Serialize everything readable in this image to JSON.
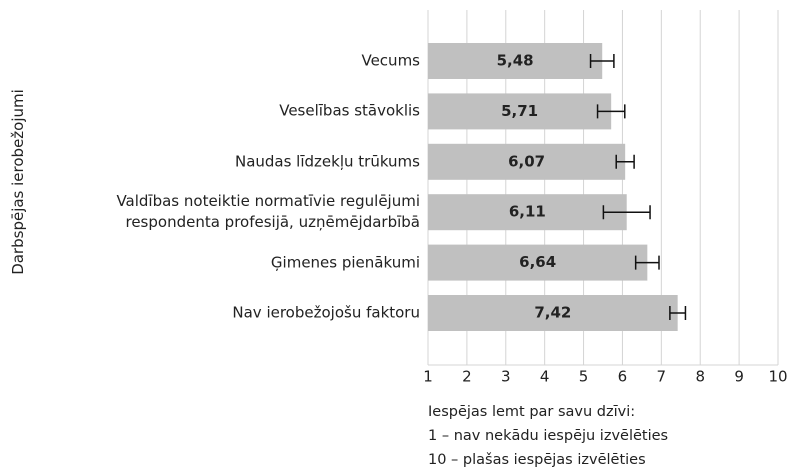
{
  "chart_data": {
    "type": "bar",
    "orientation": "horizontal",
    "ylabel": "Darbspējas ierobežojumi",
    "xlabel": "Iespējas lemt par savu dzīvi:\n1 – nav nekādu iespēju izvēlēties\n10 – plašas iespējas izvēlēties",
    "categories": [
      "Vecums",
      "Veselības stāvoklis",
      "Naudas līdzekļu trūkums",
      "Valdības noteiktie normatīvie regulējumi\nrespondenta profesijā, uzņēmējdarbībā",
      "Ģimenes pienākumi",
      "Nav ierobežojošu faktoru"
    ],
    "values": [
      5.48,
      5.71,
      6.07,
      6.11,
      6.64,
      7.42
    ],
    "value_labels": [
      "5,48",
      "5,71",
      "6,07",
      "6,11",
      "6,64",
      "7,42"
    ],
    "errors": [
      0.3,
      0.35,
      0.23,
      0.6,
      0.3,
      0.2
    ],
    "color": "#c0c0c0",
    "xlim": [
      1,
      10
    ],
    "xticks": [
      1,
      2,
      3,
      4,
      5,
      6,
      7,
      8,
      9,
      10
    ],
    "grid": true
  }
}
